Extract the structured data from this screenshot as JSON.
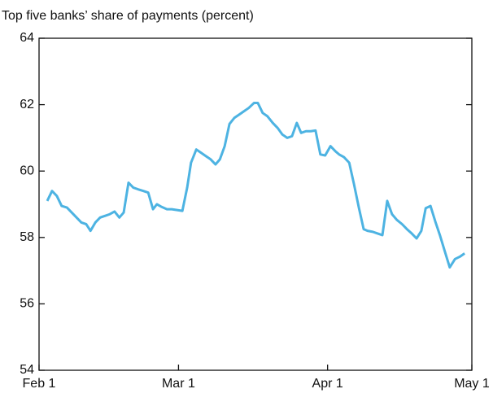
{
  "chart_data": {
    "type": "line",
    "title": "Top five banks’ share of payments (percent)",
    "x": [
      1.7,
      2.7,
      3.7,
      4.7,
      5.8,
      6.8,
      7.8,
      8.8,
      9.8,
      10.7,
      11.7,
      12.7,
      13.7,
      14.7,
      15.7,
      16.7,
      17.6,
      18.6,
      19.6,
      20.6,
      21.7,
      22.7,
      23.7,
      24.5,
      25.5,
      26.6,
      27.6,
      29.8,
      30.8,
      31.6,
      32.7,
      33.7,
      34.7,
      35.7,
      36.7,
      37.6,
      38.6,
      39.6,
      40.6,
      41.6,
      42.6,
      43.6,
      44.7,
      45.5,
      46.5,
      47.5,
      48.6,
      49.6,
      50.6,
      51.6,
      52.6,
      53.6,
      54.5,
      55.5,
      56.5,
      57.5,
      58.5,
      59.5,
      60.6,
      61.6,
      62.4,
      63.4,
      64.5,
      65.5,
      66.5,
      67.5,
      68.3,
      69.4,
      70.4,
      71.4,
      72.4,
      73.4,
      74.4,
      75.5,
      76.5,
      77.5,
      78.5,
      79.5,
      80.4,
      81.4,
      82.4,
      83.4,
      84.4,
      85.4,
      86.5,
      87.5,
      88.5
    ],
    "series": [
      {
        "color": "#4db3e2",
        "values": [
          59.1,
          59.4,
          59.25,
          58.95,
          58.9,
          58.75,
          58.6,
          58.45,
          58.4,
          58.2,
          58.45,
          58.6,
          58.65,
          58.7,
          58.78,
          58.6,
          58.75,
          59.65,
          59.5,
          59.45,
          59.4,
          59.35,
          58.85,
          59.0,
          58.92,
          58.85,
          58.85,
          58.8,
          59.5,
          60.25,
          60.65,
          60.55,
          60.45,
          60.35,
          60.2,
          60.35,
          60.75,
          61.42,
          61.6,
          61.7,
          61.8,
          61.9,
          62.05,
          62.05,
          61.75,
          61.65,
          61.45,
          61.3,
          61.1,
          61.0,
          61.05,
          61.45,
          61.15,
          61.2,
          61.2,
          61.22,
          60.5,
          60.47,
          60.75,
          60.6,
          60.5,
          60.42,
          60.25,
          59.6,
          58.9,
          58.25,
          58.2,
          58.17,
          58.12,
          58.07,
          59.1,
          58.7,
          58.53,
          58.4,
          58.25,
          58.12,
          57.97,
          58.2,
          58.88,
          58.95,
          58.48,
          58.05,
          57.57,
          57.1,
          57.35,
          57.42,
          57.52
        ]
      }
    ],
    "xlim": [
      0,
      90
    ],
    "xticks": [
      {
        "value": 0,
        "label": "Feb 1"
      },
      {
        "value": 29,
        "label": "Mar 1"
      },
      {
        "value": 60,
        "label": "Apr 1"
      },
      {
        "value": 90,
        "label": "May 1"
      }
    ],
    "ylim": [
      54,
      64
    ],
    "yticks": [
      54,
      56,
      58,
      60,
      62,
      64
    ]
  }
}
